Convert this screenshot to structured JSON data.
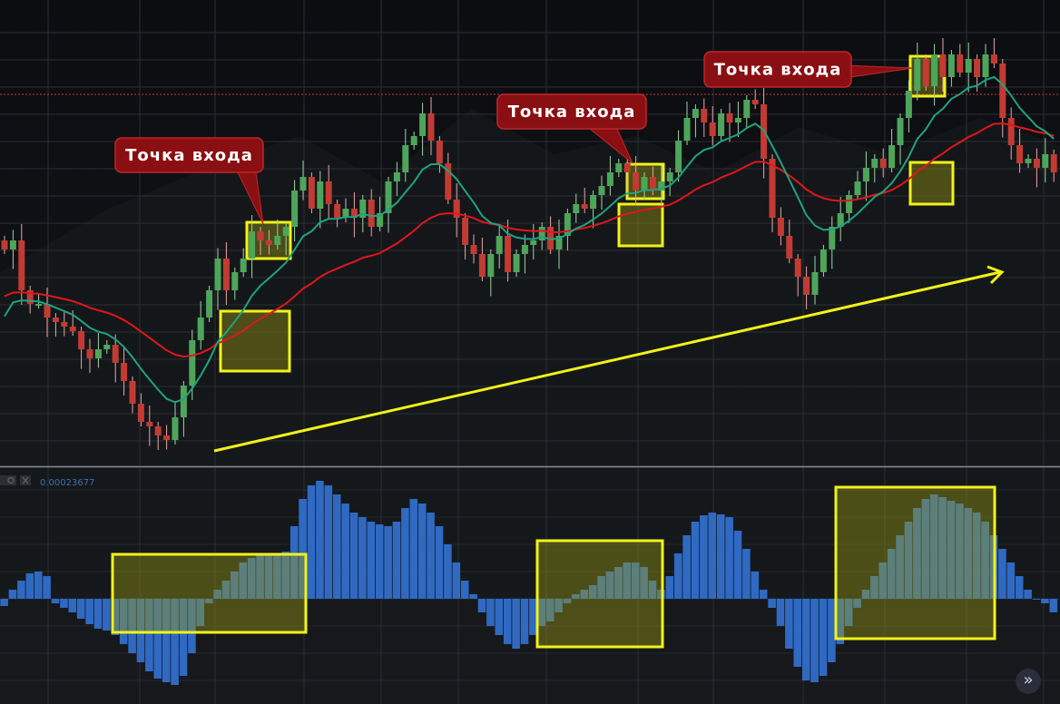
{
  "chart_data": {
    "type": "candlestick",
    "title": "",
    "xlabel": "",
    "ylabel": "",
    "grid": true,
    "colors": {
      "up": "#4ea55a",
      "down": "#c23b33",
      "fast_ma": "#1fa37f",
      "slow_ma": "#e0161a",
      "histogram": "#2f69c2",
      "highlight": "#f2f21a",
      "callout": "#8a0f12",
      "trendline": "#f2f21a",
      "level_line": "#c23b33"
    },
    "close": [
      48,
      50,
      39,
      36,
      36,
      33,
      32,
      31,
      30,
      26,
      24,
      26,
      27,
      23,
      19,
      14,
      10,
      9,
      7,
      6,
      11,
      18,
      28,
      33,
      39,
      46,
      39,
      43,
      46,
      52,
      50,
      49,
      51,
      53,
      61,
      64,
      57,
      63,
      58,
      55,
      57,
      55,
      59,
      53,
      56,
      63,
      65,
      71,
      73,
      78,
      72,
      67,
      59,
      55,
      49,
      47,
      42,
      47,
      51,
      43,
      47,
      49,
      50,
      53,
      48,
      51,
      56,
      58,
      57,
      60,
      62,
      65,
      67,
      65,
      61,
      64,
      61,
      63,
      65,
      72,
      77,
      79,
      76,
      73,
      78,
      76,
      77,
      81,
      80,
      68,
      55,
      51,
      46,
      42,
      38,
      43,
      48,
      53,
      56,
      60,
      63,
      66,
      68,
      66,
      71,
      77,
      83,
      90,
      84,
      91,
      86,
      91,
      87,
      90,
      86,
      91,
      89,
      77,
      71,
      67,
      68,
      66,
      69,
      65
    ],
    "indicator": {
      "type": "histogram",
      "value_label": "0.00023677",
      "values": [
        -8,
        10,
        20,
        28,
        30,
        25,
        -5,
        -10,
        -15,
        -22,
        -28,
        -33,
        -35,
        -40,
        -50,
        -60,
        -70,
        -80,
        -88,
        -92,
        -95,
        -85,
        -60,
        -30,
        -5,
        10,
        20,
        30,
        40,
        45,
        48,
        50,
        50,
        52,
        80,
        110,
        125,
        130,
        125,
        115,
        105,
        95,
        90,
        85,
        82,
        80,
        85,
        100,
        110,
        105,
        95,
        80,
        60,
        40,
        20,
        5,
        -15,
        -30,
        -40,
        -50,
        -55,
        -50,
        -40,
        -30,
        -25,
        -15,
        -5,
        5,
        10,
        15,
        25,
        30,
        35,
        40,
        40,
        35,
        20,
        10,
        25,
        50,
        70,
        85,
        92,
        95,
        93,
        90,
        75,
        55,
        30,
        10,
        -10,
        -30,
        -55,
        -75,
        -90,
        -92,
        -85,
        -70,
        -50,
        -30,
        -10,
        10,
        25,
        40,
        55,
        70,
        85,
        100,
        110,
        115,
        112,
        108,
        105,
        100,
        95,
        85,
        70,
        55,
        40,
        25,
        10,
        0,
        -5,
        -15
      ]
    },
    "annotations": [
      {
        "label": "Точка входа"
      },
      {
        "label": "Точка входа"
      },
      {
        "label": "Точка входа"
      }
    ]
  },
  "toolbar": {
    "icons": [
      "move-icon",
      "gear-icon",
      "close-icon"
    ]
  },
  "nav": {
    "scroll_right_label": "»"
  }
}
